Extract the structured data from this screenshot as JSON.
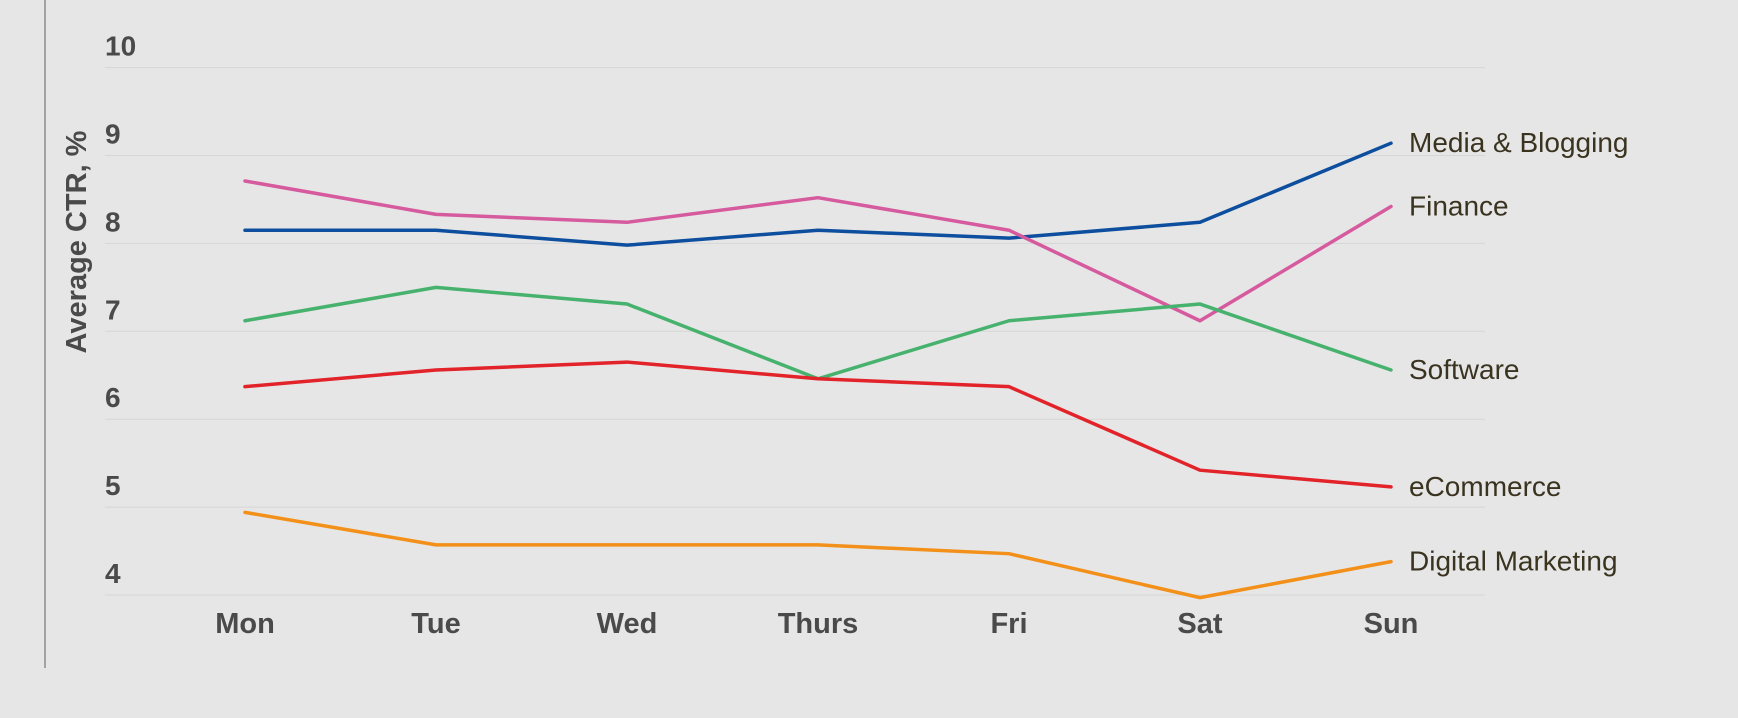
{
  "chart_data": {
    "type": "line",
    "title": "",
    "xlabel": "",
    "ylabel": "Average CTR, %",
    "categories": [
      "Mon",
      "Tue",
      "Wed",
      "Thurs",
      "Fri",
      "Sat",
      "Sun"
    ],
    "ylim": [
      3.8,
      10.2
    ],
    "yticks": [
      4,
      5,
      6,
      7,
      8,
      9,
      10
    ],
    "grid": true,
    "legend": "right (labels at line ends)",
    "series": [
      {
        "name": "Media & Blogging",
        "color": "#0d4f9e",
        "values": [
          8.15,
          8.15,
          7.98,
          8.15,
          8.06,
          8.24,
          9.14
        ]
      },
      {
        "name": "Finance",
        "color": "#d65a9e",
        "values": [
          8.71,
          8.33,
          8.24,
          8.52,
          8.15,
          7.12,
          8.42
        ]
      },
      {
        "name": "Software",
        "color": "#47b26d",
        "values": [
          7.12,
          7.5,
          7.31,
          6.46,
          7.12,
          7.31,
          6.56
        ]
      },
      {
        "name": "eCommerce",
        "color": "#e2232a",
        "values": [
          6.37,
          6.56,
          6.65,
          6.46,
          6.37,
          5.42,
          5.23
        ]
      },
      {
        "name": "Digital Marketing",
        "color": "#f39019",
        "values": [
          4.94,
          4.57,
          4.57,
          4.57,
          4.47,
          3.97,
          4.38
        ]
      }
    ]
  }
}
